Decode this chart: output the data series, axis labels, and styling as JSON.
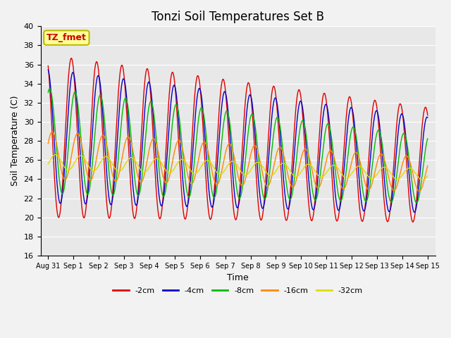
{
  "title": "Tonzi Soil Temperatures Set B",
  "xlabel": "Time",
  "ylabel": "Soil Temperature (C)",
  "ylim": [
    16,
    40
  ],
  "xtick_labels": [
    "Aug 31",
    "Sep 1",
    "Sep 2",
    "Sep 3",
    "Sep 4",
    "Sep 5",
    "Sep 6",
    "Sep 7",
    "Sep 8",
    "Sep 9",
    "Sep 10",
    "Sep 11",
    "Sep 12",
    "Sep 13",
    "Sep 14",
    "Sep 15"
  ],
  "legend_label": "TZ_fmet",
  "legend_box_color": "#ffff99",
  "legend_box_edge_color": "#bbbb00",
  "legend_text_color": "#cc0000",
  "series_labels": [
    "-2cm",
    "-4cm",
    "-8cm",
    "-16cm",
    "-32cm"
  ],
  "series_colors": [
    "#dd0000",
    "#0000cc",
    "#00bb00",
    "#ff8800",
    "#dddd00"
  ],
  "background_color": "#e8e8e8",
  "grid_color": "#ffffff",
  "title_fontsize": 12,
  "axis_label_fontsize": 9,
  "tick_fontsize": 8,
  "n_points": 1440,
  "n_days": 15,
  "amp_start": [
    8.5,
    7.0,
    5.5,
    2.5,
    0.8
  ],
  "amp_end": [
    6.0,
    5.0,
    3.5,
    1.8,
    0.6
  ],
  "mean_start": [
    28.5,
    28.5,
    28.0,
    26.5,
    25.8
  ],
  "mean_end": [
    25.5,
    25.5,
    25.0,
    24.5,
    24.5
  ],
  "phase_hrs": [
    0.0,
    1.5,
    3.5,
    6.0,
    9.0
  ],
  "peak_hour": 14.0
}
